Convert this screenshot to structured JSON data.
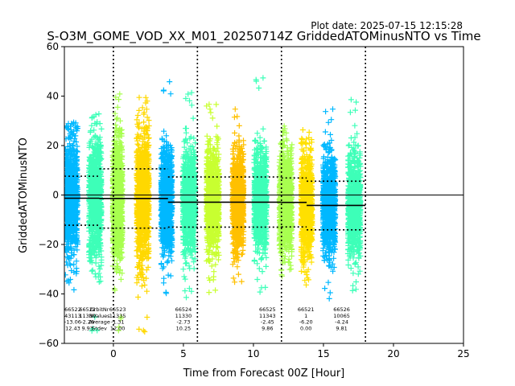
{
  "chart_data": {
    "type": "scatter",
    "title": "S-O3M_GOME_VOD_XX_M01_20250714Z GriddedATOMinusNTO vs Time",
    "plot_date": "Plot date: 2025-07-15 12:15:28",
    "xlabel": "Time from Forecast 00Z [Hour]",
    "ylabel": "GriddedATOMinusNTO",
    "xlim": [
      -3.5,
      25
    ],
    "ylim": [
      -60,
      60
    ],
    "xticks": [
      0,
      5,
      10,
      15,
      20,
      25
    ],
    "yticks": [
      -60,
      -40,
      -20,
      0,
      20,
      40,
      60
    ],
    "vlines": [
      0,
      6,
      12,
      18
    ],
    "zero_line": 0,
    "marker": "+",
    "point_count": 12180,
    "orbits": [
      {
        "center": -3.0,
        "halfwidth": 0.45,
        "mean": -1.0,
        "std": 11.5,
        "min": -42,
        "max": 30,
        "color": "#00b8ff"
      },
      {
        "center": -1.3,
        "halfwidth": 0.45,
        "mean": -1.3,
        "std": 12.0,
        "min": -55,
        "max": 33,
        "color": "#3dffb8"
      },
      {
        "center": 0.3,
        "halfwidth": 0.35,
        "mean": -1.5,
        "std": 12.0,
        "min": -57,
        "max": 43,
        "color": "#a8ff4f"
      },
      {
        "center": 2.1,
        "halfwidth": 0.45,
        "mean": -2.0,
        "std": 13.0,
        "min": -56,
        "max": 40,
        "color": "#ffd800"
      },
      {
        "center": 3.8,
        "halfwidth": 0.4,
        "mean": -2.7,
        "std": 10.2,
        "min": -41,
        "max": 47,
        "color": "#00b8ff"
      },
      {
        "center": 5.4,
        "halfwidth": 0.45,
        "mean": -2.7,
        "std": 10.2,
        "min": -45,
        "max": 42,
        "color": "#3dffb8"
      },
      {
        "center": 7.1,
        "halfwidth": 0.45,
        "mean": -2.6,
        "std": 10.2,
        "min": -40,
        "max": 37,
        "color": "#c8ff30"
      },
      {
        "center": 8.9,
        "halfwidth": 0.4,
        "mean": -2.5,
        "std": 9.9,
        "min": -36,
        "max": 35,
        "color": "#ffc000"
      },
      {
        "center": 10.5,
        "halfwidth": 0.45,
        "mean": -2.4,
        "std": 9.8,
        "min": -42,
        "max": 50,
        "color": "#3dffb8"
      },
      {
        "center": 12.3,
        "halfwidth": 0.45,
        "mean": -2.5,
        "std": 9.8,
        "min": -35,
        "max": 28,
        "color": "#a8ff4f"
      },
      {
        "center": 13.8,
        "halfwidth": 0.4,
        "mean": -4.2,
        "std": 9.8,
        "min": -40,
        "max": 27,
        "color": "#ffe000"
      },
      {
        "center": 15.4,
        "halfwidth": 0.45,
        "mean": -4.2,
        "std": 9.8,
        "min": -42,
        "max": 37,
        "color": "#00b8ff"
      },
      {
        "center": 17.2,
        "halfwidth": 0.45,
        "mean": -4.3,
        "std": 9.8,
        "min": -40,
        "max": 40,
        "color": "#3dffb8"
      }
    ],
    "mean_segments": [
      {
        "x0": -3.5,
        "x1": -1.0,
        "mean": -1.3,
        "upper": 7.6,
        "lower": -12.2
      },
      {
        "x0": -1.0,
        "x1": 3.9,
        "mean": -1.4,
        "upper": 10.6,
        "lower": -13.4
      },
      {
        "x0": 3.9,
        "x1": 12.0,
        "mean": -2.9,
        "upper": 7.3,
        "lower": -13.0
      },
      {
        "x0": 12.0,
        "x1": 13.8,
        "mean": -3.0,
        "upper": 6.9,
        "lower": -12.9
      },
      {
        "x0": 13.8,
        "x1": 18.0,
        "mean": -4.2,
        "upper": 5.6,
        "lower": -14.1
      }
    ],
    "stat_labels": [
      {
        "x": -2.9,
        "lines": [
          "66522",
          "43113",
          "-13.06",
          "12.43"
        ]
      },
      {
        "x": -1.85,
        "lines": [
          "66522",
          "11330",
          "-2.29",
          "9.93"
        ]
      },
      {
        "x": -1.0,
        "lines": [
          "OrbitNr",
          "NValues",
          "Average",
          "Stdev"
        ]
      },
      {
        "x": 0.3,
        "lines": [
          "66523",
          "11335",
          "-1.31",
          "12.00"
        ]
      },
      {
        "x": 5.0,
        "lines": [
          "66524",
          "11330",
          "-2.73",
          "10.25"
        ]
      },
      {
        "x": 11.0,
        "lines": [
          "66525",
          "11343",
          "-2.45",
          "9.86"
        ]
      },
      {
        "x": 13.75,
        "lines": [
          "66521",
          "1",
          "-6.20",
          "0.00"
        ]
      },
      {
        "x": 16.3,
        "lines": [
          "66526",
          "10065",
          "-4.24",
          "9.81"
        ]
      }
    ]
  }
}
